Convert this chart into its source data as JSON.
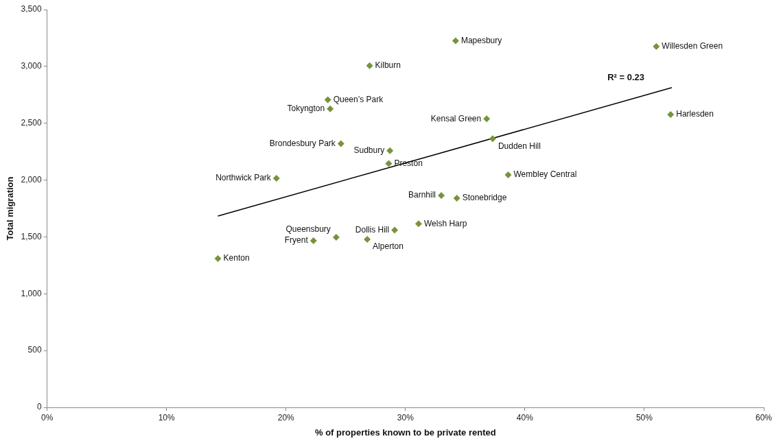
{
  "chart_data": {
    "type": "scatter",
    "xlabel": "% of properties known to be private rented",
    "ylabel": "Total migration",
    "xlim": [
      0,
      60
    ],
    "xticks": [
      {
        "value": 0,
        "label": "0%"
      },
      {
        "value": 10,
        "label": "10%"
      },
      {
        "value": 20,
        "label": "20%"
      },
      {
        "value": 30,
        "label": "30%"
      },
      {
        "value": 40,
        "label": "40%"
      },
      {
        "value": 50,
        "label": "50%"
      },
      {
        "value": 60,
        "label": "60%"
      }
    ],
    "ylim": [
      0,
      3500
    ],
    "yticks": [
      {
        "value": 0,
        "label": "0"
      },
      {
        "value": 500,
        "label": "500"
      },
      {
        "value": 1000,
        "label": "1,000"
      },
      {
        "value": 1500,
        "label": "1,500"
      },
      {
        "value": 2000,
        "label": "2,000"
      },
      {
        "value": 2500,
        "label": "2,500"
      },
      {
        "value": 3000,
        "label": "3,000"
      },
      {
        "value": 3500,
        "label": "3,500"
      }
    ],
    "grid": false,
    "legend": false,
    "marker": "diamond",
    "series": [
      {
        "type": "scatter",
        "color": "#77933c",
        "x": [
          34.2,
          51.0,
          27.0,
          23.5,
          23.7,
          36.8,
          52.2,
          24.6,
          28.7,
          28.6,
          37.3,
          38.6,
          19.2,
          33.0,
          34.3,
          31.1,
          29.1,
          24.2,
          22.3,
          26.8,
          14.3
        ],
        "values": [
          3225,
          3175,
          3007,
          2707,
          2626,
          2539,
          2576,
          2320,
          2258,
          2146,
          2364,
          2046,
          2015,
          1865,
          1840,
          1616,
          1560,
          1497,
          1466,
          1478,
          1310
        ]
      },
      {
        "type": "line",
        "color": "#000000",
        "x": [
          14.3,
          52.3
        ],
        "values": [
          1684,
          2813
        ],
        "marker": "none"
      }
    ],
    "annotations": [
      {
        "text": "Mapesbury",
        "x": 34.2,
        "y": 3225
      },
      {
        "text": "Willesden Green",
        "x": 51.0,
        "y": 3175
      },
      {
        "text": "Kilburn",
        "x": 27.0,
        "y": 3007
      },
      {
        "text": "Queen’s Park",
        "x": 23.5,
        "y": 2707
      },
      {
        "text": "Tokyngton",
        "x": 23.7,
        "y": 2626
      },
      {
        "text": "Kensal Green",
        "x": 36.8,
        "y": 2539
      },
      {
        "text": "Harlesden",
        "x": 52.2,
        "y": 2576
      },
      {
        "text": "Brondesbury Park",
        "x": 24.6,
        "y": 2320
      },
      {
        "text": "Sudbury",
        "x": 28.7,
        "y": 2258
      },
      {
        "text": "Preston",
        "x": 28.6,
        "y": 2146
      },
      {
        "text": "Dudden Hill",
        "x": 37.3,
        "y": 2364
      },
      {
        "text": "Wembley Central",
        "x": 38.6,
        "y": 2046
      },
      {
        "text": "Northwick Park",
        "x": 19.2,
        "y": 2015
      },
      {
        "text": "Barnhill",
        "x": 33.0,
        "y": 1865
      },
      {
        "text": "Stonebridge",
        "x": 34.3,
        "y": 1840
      },
      {
        "text": "Welsh Harp",
        "x": 31.1,
        "y": 1616
      },
      {
        "text": "Dollis Hill",
        "x": 29.1,
        "y": 1560
      },
      {
        "text": "Queensbury",
        "x": 24.2,
        "y": 1497
      },
      {
        "text": "Fryent",
        "x": 22.3,
        "y": 1466
      },
      {
        "text": "Alperton",
        "x": 26.8,
        "y": 1478
      },
      {
        "text": "Kenton",
        "x": 14.3,
        "y": 1310
      },
      "R² = 0.23"
    ]
  }
}
